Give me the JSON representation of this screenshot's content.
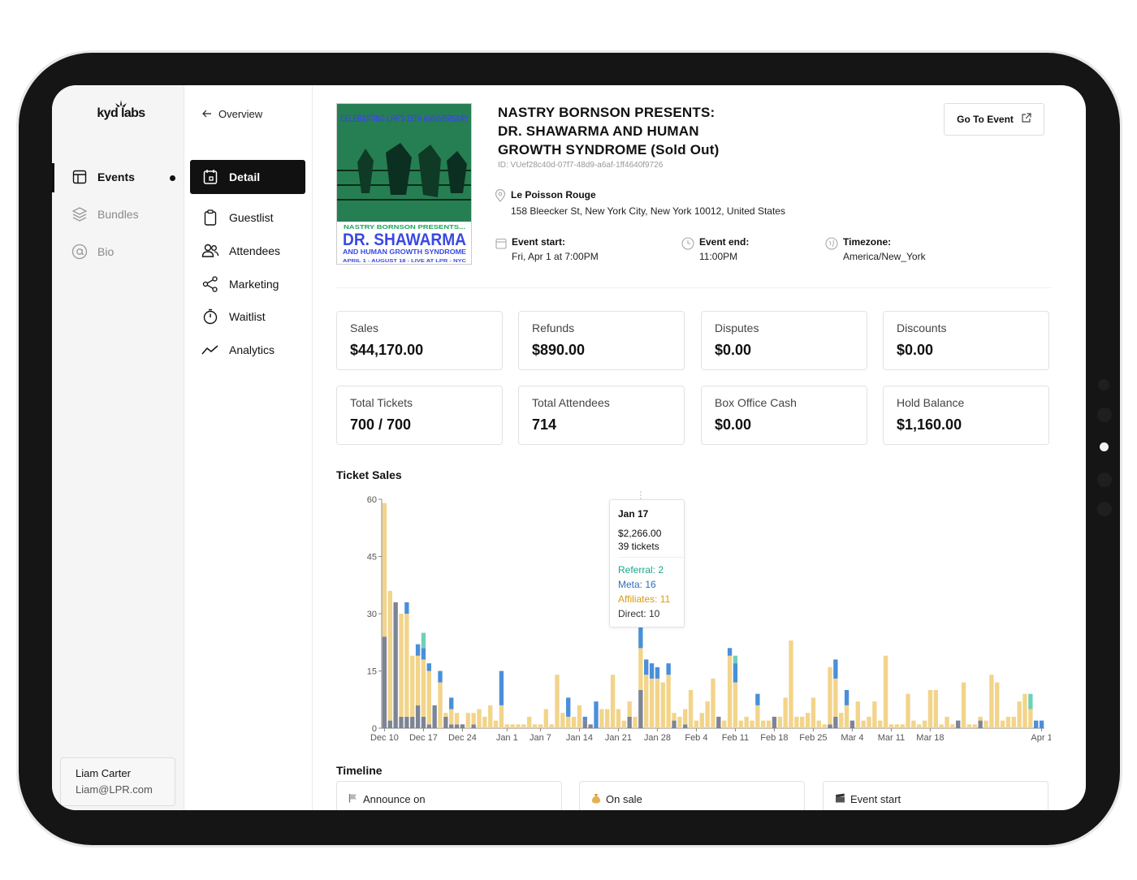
{
  "brand": {
    "name": "kyd labs"
  },
  "sidebar": {
    "items": [
      {
        "label": "Events",
        "icon": "layout-icon"
      },
      {
        "label": "Bundles",
        "icon": "layers-icon"
      },
      {
        "label": "Bio",
        "icon": "at-icon"
      }
    ],
    "user": {
      "name": "Liam Carter",
      "email": "Liam@LPR.com"
    }
  },
  "subnav": {
    "back_label": "Overview",
    "items": [
      {
        "label": "Detail",
        "icon": "calendar-icon"
      },
      {
        "label": "Guestlist",
        "icon": "clipboard-icon"
      },
      {
        "label": "Attendees",
        "icon": "users-icon"
      },
      {
        "label": "Marketing",
        "icon": "share-icon"
      },
      {
        "label": "Waitlist",
        "icon": "timer-icon"
      },
      {
        "label": "Analytics",
        "icon": "trend-icon"
      }
    ]
  },
  "event": {
    "title_lines": [
      "NASTRY BORNSON PRESENTS:",
      "DR. SHAWARMA AND HUMAN",
      "GROWTH SYNDROME (Sold Out)"
    ],
    "id": "ID: VUef28c40d-07f7-48d9-a6af-1ff4640f9726",
    "goto_label": "Go To Event",
    "venue_name": "Le Poisson Rouge",
    "venue_address": "158 Bleecker St, New York City, New York 10012, United States",
    "start_label": "Event start:",
    "start_value": "Fri, Apr 1 at 7:00PM",
    "end_label": "Event end:",
    "end_value": "11:00PM",
    "tz_label": "Timezone:",
    "tz_value": "America/New_York",
    "poster": {
      "top_text": "CELEBRATING LPR'S 15TH ANNIVERSARY",
      "presents": "NASTRY BORNSON PRESENTS...",
      "headline": "DR. SHAWARMA",
      "subline": "AND HUMAN GROWTH SYNDROME",
      "footer": "APRIL 1 - AUGUST 18 - LIVE AT LPR - NYC"
    }
  },
  "stats": [
    {
      "label": "Sales",
      "value": "$44,170.00"
    },
    {
      "label": "Refunds",
      "value": "$890.00"
    },
    {
      "label": "Disputes",
      "value": "$0.00"
    },
    {
      "label": "Discounts",
      "value": "$0.00"
    },
    {
      "label": "Total Tickets",
      "value": "700 / 700"
    },
    {
      "label": "Total Attendees",
      "value": "714"
    },
    {
      "label": "Box Office Cash",
      "value": "$0.00"
    },
    {
      "label": "Hold Balance",
      "value": "$1,160.00"
    }
  ],
  "sections": {
    "ticket_sales": "Ticket Sales",
    "timeline": "Timeline"
  },
  "tooltip": {
    "date": "Jan 17",
    "amount": "$2,266.00",
    "tickets": "39 tickets",
    "referral": "Referral: 2",
    "meta": "Meta: 16",
    "affiliates": "Affiliates: 11",
    "direct": "Direct: 10"
  },
  "timeline": [
    {
      "label": "Announce on",
      "icon": "flag-icon"
    },
    {
      "label": "On sale",
      "icon": "money-bag-icon"
    },
    {
      "label": "Event start",
      "icon": "clapper-icon"
    }
  ],
  "colors": {
    "direct": "#7d8494",
    "affiliates": "#f2d48a",
    "meta": "#4a8fd9",
    "referral": "#6fd0b8",
    "tooltip_referral": "#1aa58a",
    "tooltip_meta": "#2f6fb8",
    "tooltip_affiliates": "#d79c13"
  },
  "chart_data": {
    "type": "bar",
    "stacked": true,
    "title": "Ticket Sales",
    "ylim": [
      0,
      60
    ],
    "yticks": [
      0,
      15,
      30,
      45,
      60
    ],
    "xtick_labels": [
      "Dec 10",
      "Dec 17",
      "Dec 24",
      "Jan 1",
      "Jan 7",
      "Jan 14",
      "Jan 21",
      "Jan 28",
      "Feb 4",
      "Feb 11",
      "Feb 18",
      "Feb 25",
      "Mar 4",
      "Mar 11",
      "Mar 18",
      "Apr 1"
    ],
    "series_order": [
      "direct",
      "affiliates",
      "meta",
      "referral"
    ],
    "bars": [
      {
        "day": 0,
        "direct": 24,
        "affiliates": 35,
        "meta": 0,
        "referral": 0
      },
      {
        "day": 1,
        "direct": 2,
        "affiliates": 34,
        "meta": 0,
        "referral": 0
      },
      {
        "day": 2,
        "direct": 33,
        "affiliates": 0,
        "meta": 0,
        "referral": 0
      },
      {
        "day": 3,
        "direct": 3,
        "affiliates": 27,
        "meta": 0,
        "referral": 0
      },
      {
        "day": 4,
        "direct": 3,
        "affiliates": 27,
        "meta": 3,
        "referral": 0
      },
      {
        "day": 5,
        "direct": 3,
        "affiliates": 16,
        "meta": 0,
        "referral": 0
      },
      {
        "day": 6,
        "direct": 6,
        "affiliates": 13,
        "meta": 3,
        "referral": 0
      },
      {
        "day": 7,
        "direct": 3,
        "affiliates": 15,
        "meta": 3,
        "referral": 4
      },
      {
        "day": 8,
        "direct": 1,
        "affiliates": 14,
        "meta": 2,
        "referral": 0
      },
      {
        "day": 9,
        "direct": 6,
        "affiliates": 0,
        "meta": 0,
        "referral": 0
      },
      {
        "day": 10,
        "direct": 0,
        "affiliates": 12,
        "meta": 3,
        "referral": 0
      },
      {
        "day": 11,
        "direct": 3,
        "affiliates": 1,
        "meta": 0,
        "referral": 0
      },
      {
        "day": 12,
        "direct": 1,
        "affiliates": 4,
        "meta": 3,
        "referral": 0
      },
      {
        "day": 13,
        "direct": 1,
        "affiliates": 3,
        "meta": 0,
        "referral": 0
      },
      {
        "day": 14,
        "direct": 1,
        "affiliates": 0,
        "meta": 0,
        "referral": 0
      },
      {
        "day": 15,
        "direct": 0,
        "affiliates": 4,
        "meta": 0,
        "referral": 0
      },
      {
        "day": 16,
        "direct": 1,
        "affiliates": 3,
        "meta": 0,
        "referral": 0
      },
      {
        "day": 17,
        "direct": 0,
        "affiliates": 5,
        "meta": 0,
        "referral": 0
      },
      {
        "day": 18,
        "direct": 0,
        "affiliates": 3,
        "meta": 0,
        "referral": 0
      },
      {
        "day": 19,
        "direct": 0,
        "affiliates": 6,
        "meta": 0,
        "referral": 0
      },
      {
        "day": 20,
        "direct": 0,
        "affiliates": 2,
        "meta": 0,
        "referral": 0
      },
      {
        "day": 21,
        "direct": 0,
        "affiliates": 6,
        "meta": 9,
        "referral": 0
      },
      {
        "day": 22,
        "direct": 0,
        "affiliates": 1,
        "meta": 0,
        "referral": 0
      },
      {
        "day": 23,
        "direct": 0,
        "affiliates": 1,
        "meta": 0,
        "referral": 0
      },
      {
        "day": 24,
        "direct": 0,
        "affiliates": 1,
        "meta": 0,
        "referral": 0
      },
      {
        "day": 25,
        "direct": 0,
        "affiliates": 1,
        "meta": 0,
        "referral": 0
      },
      {
        "day": 26,
        "direct": 0,
        "affiliates": 3,
        "meta": 0,
        "referral": 0
      },
      {
        "day": 27,
        "direct": 0,
        "affiliates": 1,
        "meta": 0,
        "referral": 0
      },
      {
        "day": 28,
        "direct": 0,
        "affiliates": 1,
        "meta": 0,
        "referral": 0
      },
      {
        "day": 29,
        "direct": 0,
        "affiliates": 5,
        "meta": 0,
        "referral": 0
      },
      {
        "day": 30,
        "direct": 0,
        "affiliates": 1,
        "meta": 0,
        "referral": 0
      },
      {
        "day": 31,
        "direct": 0,
        "affiliates": 14,
        "meta": 0,
        "referral": 0
      },
      {
        "day": 32,
        "direct": 0,
        "affiliates": 4,
        "meta": 0,
        "referral": 0
      },
      {
        "day": 33,
        "direct": 0,
        "affiliates": 3,
        "meta": 5,
        "referral": 0
      },
      {
        "day": 34,
        "direct": 0,
        "affiliates": 3,
        "meta": 0,
        "referral": 0
      },
      {
        "day": 35,
        "direct": 0,
        "affiliates": 6,
        "meta": 0,
        "referral": 0
      },
      {
        "day": 36,
        "direct": 2,
        "affiliates": 0,
        "meta": 1,
        "referral": 0
      },
      {
        "day": 37,
        "direct": 1,
        "affiliates": 0,
        "meta": 0,
        "referral": 0
      },
      {
        "day": 38,
        "direct": 0,
        "affiliates": 0,
        "meta": 7,
        "referral": 0
      },
      {
        "day": 39,
        "direct": 0,
        "affiliates": 5,
        "meta": 0,
        "referral": 0
      },
      {
        "day": 40,
        "direct": 0,
        "affiliates": 5,
        "meta": 0,
        "referral": 0
      },
      {
        "day": 41,
        "direct": 0,
        "affiliates": 14,
        "meta": 0,
        "referral": 0
      },
      {
        "day": 42,
        "direct": 0,
        "affiliates": 5,
        "meta": 0,
        "referral": 0
      },
      {
        "day": 43,
        "direct": 0,
        "affiliates": 2,
        "meta": 0,
        "referral": 0
      },
      {
        "day": 44,
        "direct": 3,
        "affiliates": 4,
        "meta": 0,
        "referral": 0
      },
      {
        "day": 45,
        "direct": 0,
        "affiliates": 3,
        "meta": 0,
        "referral": 0
      },
      {
        "day": 46,
        "direct": 10,
        "affiliates": 11,
        "meta": 16,
        "referral": 2
      },
      {
        "day": 47,
        "direct": 0,
        "affiliates": 14,
        "meta": 4,
        "referral": 0
      },
      {
        "day": 48,
        "direct": 0,
        "affiliates": 13,
        "meta": 4,
        "referral": 0
      },
      {
        "day": 49,
        "direct": 0,
        "affiliates": 13,
        "meta": 3,
        "referral": 0
      },
      {
        "day": 50,
        "direct": 0,
        "affiliates": 12,
        "meta": 0,
        "referral": 0
      },
      {
        "day": 51,
        "direct": 0,
        "affiliates": 14,
        "meta": 3,
        "referral": 0
      },
      {
        "day": 52,
        "direct": 2,
        "affiliates": 2,
        "meta": 0,
        "referral": 0
      },
      {
        "day": 53,
        "direct": 0,
        "affiliates": 3,
        "meta": 0,
        "referral": 0
      },
      {
        "day": 54,
        "direct": 1,
        "affiliates": 4,
        "meta": 0,
        "referral": 0
      },
      {
        "day": 55,
        "direct": 0,
        "affiliates": 10,
        "meta": 0,
        "referral": 0
      },
      {
        "day": 56,
        "direct": 0,
        "affiliates": 2,
        "meta": 0,
        "referral": 0
      },
      {
        "day": 57,
        "direct": 0,
        "affiliates": 4,
        "meta": 0,
        "referral": 0
      },
      {
        "day": 58,
        "direct": 0,
        "affiliates": 7,
        "meta": 0,
        "referral": 0
      },
      {
        "day": 59,
        "direct": 0,
        "affiliates": 13,
        "meta": 0,
        "referral": 0
      },
      {
        "day": 60,
        "direct": 3,
        "affiliates": 0,
        "meta": 0,
        "referral": 0
      },
      {
        "day": 61,
        "direct": 0,
        "affiliates": 2,
        "meta": 0,
        "referral": 0
      },
      {
        "day": 62,
        "direct": 0,
        "affiliates": 19,
        "meta": 2,
        "referral": 0
      },
      {
        "day": 63,
        "direct": 0,
        "affiliates": 12,
        "meta": 5,
        "referral": 2
      },
      {
        "day": 64,
        "direct": 0,
        "affiliates": 2,
        "meta": 0,
        "referral": 0
      },
      {
        "day": 65,
        "direct": 0,
        "affiliates": 3,
        "meta": 0,
        "referral": 0
      },
      {
        "day": 66,
        "direct": 0,
        "affiliates": 2,
        "meta": 0,
        "referral": 0
      },
      {
        "day": 67,
        "direct": 0,
        "affiliates": 6,
        "meta": 3,
        "referral": 0
      },
      {
        "day": 68,
        "direct": 0,
        "affiliates": 2,
        "meta": 0,
        "referral": 0
      },
      {
        "day": 69,
        "direct": 0,
        "affiliates": 2,
        "meta": 0,
        "referral": 0
      },
      {
        "day": 70,
        "direct": 3,
        "affiliates": 0,
        "meta": 0,
        "referral": 0
      },
      {
        "day": 71,
        "direct": 0,
        "affiliates": 3,
        "meta": 0,
        "referral": 0
      },
      {
        "day": 72,
        "direct": 0,
        "affiliates": 8,
        "meta": 0,
        "referral": 0
      },
      {
        "day": 73,
        "direct": 0,
        "affiliates": 23,
        "meta": 0,
        "referral": 0
      },
      {
        "day": 74,
        "direct": 0,
        "affiliates": 3,
        "meta": 0,
        "referral": 0
      },
      {
        "day": 75,
        "direct": 0,
        "affiliates": 3,
        "meta": 0,
        "referral": 0
      },
      {
        "day": 76,
        "direct": 0,
        "affiliates": 4,
        "meta": 0,
        "referral": 0
      },
      {
        "day": 77,
        "direct": 0,
        "affiliates": 8,
        "meta": 0,
        "referral": 0
      },
      {
        "day": 78,
        "direct": 0,
        "affiliates": 2,
        "meta": 0,
        "referral": 0
      },
      {
        "day": 79,
        "direct": 0,
        "affiliates": 1,
        "meta": 0,
        "referral": 0
      },
      {
        "day": 80,
        "direct": 1,
        "affiliates": 15,
        "meta": 0,
        "referral": 0
      },
      {
        "day": 81,
        "direct": 3,
        "affiliates": 10,
        "meta": 5,
        "referral": 0
      },
      {
        "day": 82,
        "direct": 0,
        "affiliates": 4,
        "meta": 0,
        "referral": 0
      },
      {
        "day": 83,
        "direct": 0,
        "affiliates": 6,
        "meta": 4,
        "referral": 0
      },
      {
        "day": 84,
        "direct": 2,
        "affiliates": 0,
        "meta": 0,
        "referral": 0
      },
      {
        "day": 85,
        "direct": 0,
        "affiliates": 7,
        "meta": 0,
        "referral": 0
      },
      {
        "day": 86,
        "direct": 0,
        "affiliates": 2,
        "meta": 0,
        "referral": 0
      },
      {
        "day": 87,
        "direct": 0,
        "affiliates": 3,
        "meta": 0,
        "referral": 0
      },
      {
        "day": 88,
        "direct": 0,
        "affiliates": 7,
        "meta": 0,
        "referral": 0
      },
      {
        "day": 89,
        "direct": 0,
        "affiliates": 2,
        "meta": 0,
        "referral": 0
      },
      {
        "day": 90,
        "direct": 0,
        "affiliates": 19,
        "meta": 0,
        "referral": 0
      },
      {
        "day": 91,
        "direct": 0,
        "affiliates": 1,
        "meta": 0,
        "referral": 0
      },
      {
        "day": 92,
        "direct": 0,
        "affiliates": 1,
        "meta": 0,
        "referral": 0
      },
      {
        "day": 93,
        "direct": 0,
        "affiliates": 1,
        "meta": 0,
        "referral": 0
      },
      {
        "day": 94,
        "direct": 0,
        "affiliates": 9,
        "meta": 0,
        "referral": 0
      },
      {
        "day": 95,
        "direct": 0,
        "affiliates": 2,
        "meta": 0,
        "referral": 0
      },
      {
        "day": 96,
        "direct": 0,
        "affiliates": 1,
        "meta": 0,
        "referral": 0
      },
      {
        "day": 97,
        "direct": 0,
        "affiliates": 2,
        "meta": 0,
        "referral": 0
      },
      {
        "day": 98,
        "direct": 0,
        "affiliates": 10,
        "meta": 0,
        "referral": 0
      },
      {
        "day": 99,
        "direct": 0,
        "affiliates": 10,
        "meta": 0,
        "referral": 0
      },
      {
        "day": 100,
        "direct": 0,
        "affiliates": 1,
        "meta": 0,
        "referral": 0
      },
      {
        "day": 101,
        "direct": 0,
        "affiliates": 3,
        "meta": 0,
        "referral": 0
      },
      {
        "day": 102,
        "direct": 0,
        "affiliates": 1,
        "meta": 0,
        "referral": 0
      },
      {
        "day": 103,
        "direct": 2,
        "affiliates": 0,
        "meta": 0,
        "referral": 0
      },
      {
        "day": 104,
        "direct": 0,
        "affiliates": 12,
        "meta": 0,
        "referral": 0
      },
      {
        "day": 105,
        "direct": 0,
        "affiliates": 1,
        "meta": 0,
        "referral": 0
      },
      {
        "day": 106,
        "direct": 0,
        "affiliates": 1,
        "meta": 0,
        "referral": 0
      },
      {
        "day": 107,
        "direct": 2,
        "affiliates": 1,
        "meta": 0,
        "referral": 0
      },
      {
        "day": 108,
        "direct": 0,
        "affiliates": 2,
        "meta": 0,
        "referral": 0
      },
      {
        "day": 109,
        "direct": 0,
        "affiliates": 14,
        "meta": 0,
        "referral": 0
      },
      {
        "day": 110,
        "direct": 0,
        "affiliates": 12,
        "meta": 0,
        "referral": 0
      },
      {
        "day": 111,
        "direct": 0,
        "affiliates": 2,
        "meta": 0,
        "referral": 0
      },
      {
        "day": 112,
        "direct": 0,
        "affiliates": 3,
        "meta": 0,
        "referral": 0
      },
      {
        "day": 113,
        "direct": 0,
        "affiliates": 3,
        "meta": 0,
        "referral": 0
      },
      {
        "day": 114,
        "direct": 0,
        "affiliates": 7,
        "meta": 0,
        "referral": 0
      },
      {
        "day": 115,
        "direct": 0,
        "affiliates": 9,
        "meta": 0,
        "referral": 0
      },
      {
        "day": 116,
        "direct": 0,
        "affiliates": 5,
        "meta": 0,
        "referral": 4
      },
      {
        "day": 117,
        "direct": 0,
        "affiliates": 0,
        "meta": 2,
        "referral": 0
      },
      {
        "day": 118,
        "direct": 0,
        "affiliates": 0,
        "meta": 2,
        "referral": 0
      }
    ]
  }
}
